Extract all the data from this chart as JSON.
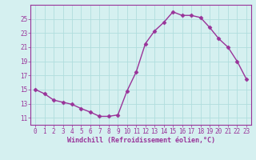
{
  "x": [
    0,
    1,
    2,
    3,
    4,
    5,
    6,
    7,
    8,
    9,
    10,
    11,
    12,
    13,
    14,
    15,
    16,
    17,
    18,
    19,
    20,
    21,
    22,
    23
  ],
  "y": [
    15.0,
    14.4,
    13.5,
    13.2,
    12.9,
    12.3,
    11.8,
    11.2,
    11.2,
    11.4,
    14.8,
    17.5,
    21.5,
    23.3,
    24.5,
    26.0,
    25.5,
    25.5,
    25.2,
    23.8,
    22.2,
    21.0,
    19.0,
    16.5
  ],
  "line_color": "#993399",
  "marker": "D",
  "markersize": 2.5,
  "linewidth": 1.0,
  "bg_color": "#d5f0f0",
  "grid_color": "#b0dede",
  "xlabel": "Windchill (Refroidissement éolien,°C)",
  "xlabel_color": "#993399",
  "tick_color": "#993399",
  "ylim": [
    10,
    27
  ],
  "xlim": [
    -0.5,
    23.5
  ],
  "yticks": [
    11,
    13,
    15,
    17,
    19,
    21,
    23,
    25
  ],
  "xticks": [
    0,
    1,
    2,
    3,
    4,
    5,
    6,
    7,
    8,
    9,
    10,
    11,
    12,
    13,
    14,
    15,
    16,
    17,
    18,
    19,
    20,
    21,
    22,
    23
  ],
  "tick_fontsize": 5.5,
  "xlabel_fontsize": 6.0
}
